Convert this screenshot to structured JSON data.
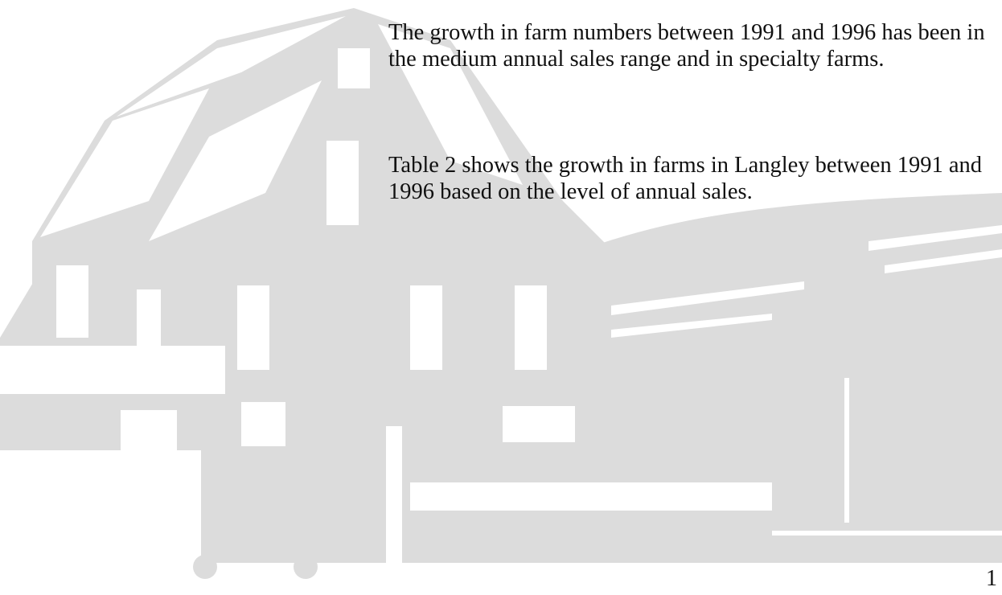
{
  "body": {
    "paragraphs": [
      "The growth in farm numbers between 1991 and 1996 has been in the medium annual sales range and in specialty farms.",
      "Table 2 shows the growth in farms in Langley between 1991 and 1996 based on the level of annual sales."
    ]
  },
  "footer": {
    "page_number": "1"
  }
}
